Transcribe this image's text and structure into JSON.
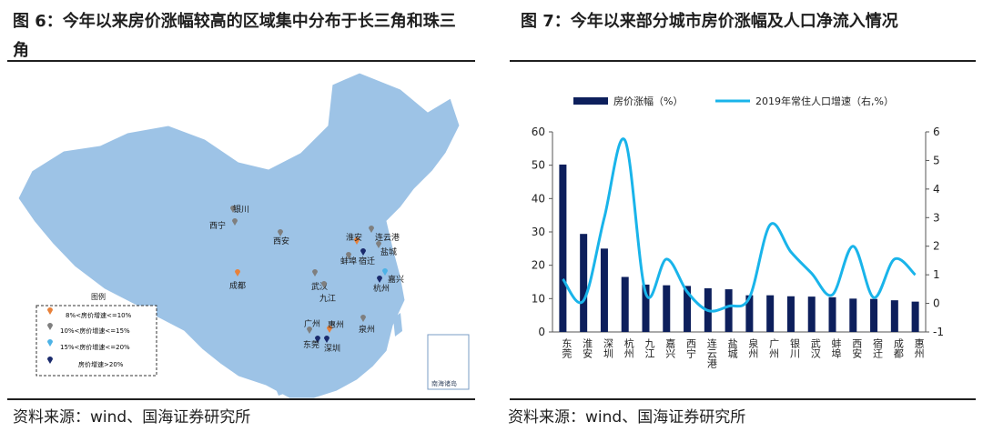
{
  "left": {
    "title": "图 6：今年以来房价涨幅较高的区域集中分布于长三角和珠三角",
    "source": "资料来源：wind、国海证券研究所",
    "map_labels": {
      "nanhai": "南海诸岛",
      "cities": {
        "xining": "西宁",
        "lanzhou": "银川",
        "xian": "西安",
        "chengdu": "成都",
        "wuhan": "武汉",
        "jiujiang": "九江",
        "huaian": "淮安",
        "lianyungang": "连云港",
        "yancheng": "盐城",
        "bengbu": "蚌埠",
        "suqian": "宿迁",
        "jiaxing": "嘉兴",
        "hangzhou": "杭州",
        "guangzhou": "广州",
        "huizhou": "惠州",
        "quanzhou": "泉州",
        "dongguan": "东莞",
        "shenzhen": "深圳"
      }
    },
    "legend": {
      "title": "图例",
      "items": [
        {
          "label": "8%<房价增速<=10%",
          "color": "#e8813a"
        },
        {
          "label": "10%<房价增速<=15%",
          "color": "#7f7f7f"
        },
        {
          "label": "15%<房价增速<=20%",
          "color": "#4db3e6"
        },
        {
          "label": "房价增速>20%",
          "color": "#1a2a6c"
        }
      ]
    }
  },
  "right": {
    "title": "图 7：今年以来部分城市房价涨幅及人口净流入情况",
    "source": "资料来源：wind、国海证券研究所"
  },
  "chart_data": {
    "type": "bar",
    "categories": [
      "东莞",
      "淮安",
      "深圳",
      "杭州",
      "九江",
      "嘉兴",
      "西宁",
      "连云港",
      "盐城",
      "泉州",
      "广州",
      "银川",
      "武汉",
      "蚌埠",
      "西安",
      "宿迁",
      "成都",
      "惠州"
    ],
    "series": [
      {
        "name": "房价涨幅（%）",
        "type": "bar",
        "axis": "left",
        "color": "#0d1f5c",
        "values": [
          50.2,
          29.4,
          25.0,
          16.5,
          14.2,
          14.0,
          13.8,
          13.1,
          12.8,
          11.0,
          11.0,
          10.7,
          10.6,
          10.4,
          10.0,
          9.9,
          9.5,
          9.1
        ]
      },
      {
        "name": "2019年常住人口增速（右,%）",
        "type": "line",
        "axis": "right",
        "color": "#19b4ea",
        "values": [
          0.85,
          0.1,
          3.0,
          5.7,
          0.35,
          1.55,
          0.4,
          -0.25,
          -0.1,
          0.2,
          2.75,
          1.8,
          1.05,
          0.3,
          2.0,
          0.2,
          1.55,
          1.0
        ]
      }
    ],
    "yleft": {
      "min": 0,
      "max": 60,
      "ticks": [
        0,
        10,
        20,
        30,
        40,
        50,
        60
      ]
    },
    "yright": {
      "min": -1,
      "max": 6,
      "ticks": [
        -1,
        0,
        1,
        2,
        3,
        4,
        5,
        6
      ]
    },
    "legend_position": "top"
  }
}
